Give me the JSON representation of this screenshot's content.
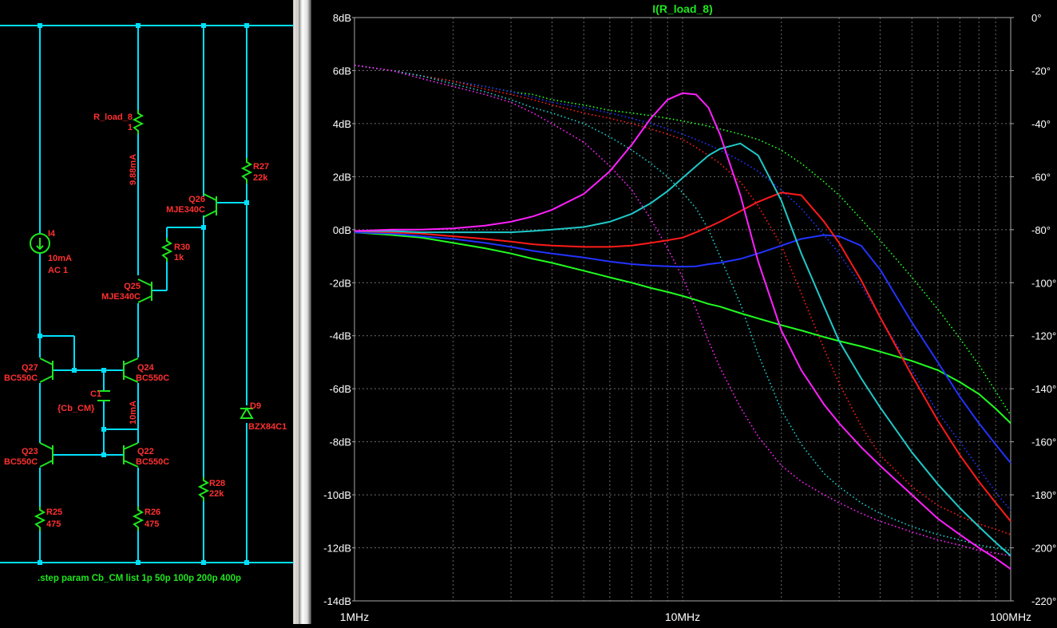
{
  "schematic": {
    "directive": ".step param Cb_CM list 1p 50p 100p 200p 400p",
    "labels": {
      "r_load_name": "R_load_8",
      "r_load_value": "1",
      "current_label": "9.88mA",
      "r27_name": "R27",
      "r27_value": "22k",
      "q26_name": "Q26",
      "q26_model": "MJE340C",
      "r30_name": "R30",
      "r30_value": "1k",
      "i4_name": "I4",
      "i4_value": "10mA",
      "i4_ac": "AC 1",
      "q25_name": "Q25",
      "q25_model": "MJE340C",
      "q27_name": "Q27",
      "q27_model": "BC550C",
      "q24_name": "Q24",
      "q24_model": "BC550C",
      "c1_name": "C1",
      "c1_value": "{Cb_CM}",
      "current2_label": "10mA",
      "d9_name": "D9",
      "d9_model": "BZX84C1",
      "q23_name": "Q23",
      "q23_model": "BC550C",
      "q22_name": "Q22",
      "q22_model": "BC550C",
      "r28_name": "R28",
      "r28_value": "22k",
      "r25_name": "R25",
      "r25_value": "475",
      "r26_name": "R26",
      "r26_value": "475"
    }
  },
  "plot": {
    "title": "I(R_load_8)",
    "colors": {
      "wire": "#00e0ff",
      "component": "#1ee61e",
      "label": "#ff3030",
      "grid": "#6a6a6a",
      "axis_text": "#ffffff"
    }
  },
  "chart_data": {
    "type": "line",
    "title": "I(R_load_8)",
    "x_scale": "log",
    "x_range_hz": [
      1000000,
      100000000
    ],
    "x_ticks": [
      "1MHz",
      "10MHz",
      "100MHz"
    ],
    "y_left_range_db": [
      -14,
      8
    ],
    "y_left_ticks": [
      "8dB",
      "6dB",
      "4dB",
      "2dB",
      "0dB",
      "-2dB",
      "-4dB",
      "-6dB",
      "-8dB",
      "-10dB",
      "-12dB",
      "-14dB"
    ],
    "y_right_range_deg": [
      -220,
      0
    ],
    "y_right_ticks": [
      "0°",
      "-20°",
      "-40°",
      "-60°",
      "-80°",
      "-100°",
      "-120°",
      "-140°",
      "-160°",
      "-180°",
      "-200°",
      "-220°"
    ],
    "grid": true,
    "x_hz": [
      1000000,
      1300000,
      1600000,
      2000000,
      2500000,
      3000000,
      3500000,
      4000000,
      5000000,
      6000000,
      7000000,
      8000000,
      9000000,
      10000000,
      11000000,
      12000000,
      13000000,
      15000000,
      17000000,
      20000000,
      23000000,
      27000000,
      30000000,
      35000000,
      40000000,
      50000000,
      60000000,
      70000000,
      80000000,
      90000000,
      100000000
    ],
    "series": [
      {
        "color": "#20ff20",
        "style": "solid",
        "axis": "left",
        "values": [
          -0.1,
          -0.2,
          -0.3,
          -0.5,
          -0.7,
          -0.9,
          -1.1,
          -1.25,
          -1.55,
          -1.8,
          -2.0,
          -2.2,
          -2.35,
          -2.5,
          -2.65,
          -2.8,
          -2.9,
          -3.15,
          -3.35,
          -3.6,
          -3.8,
          -4.05,
          -4.2,
          -4.4,
          -4.6,
          -4.95,
          -5.3,
          -5.75,
          -6.2,
          -6.75,
          -7.3
        ]
      },
      {
        "color": "#2233ff",
        "style": "solid",
        "axis": "left",
        "values": [
          -0.1,
          -0.15,
          -0.25,
          -0.35,
          -0.5,
          -0.65,
          -0.8,
          -0.9,
          -1.05,
          -1.2,
          -1.3,
          -1.35,
          -1.38,
          -1.4,
          -1.38,
          -1.3,
          -1.25,
          -1.1,
          -0.9,
          -0.6,
          -0.35,
          -0.2,
          -0.25,
          -0.6,
          -1.5,
          -3.5,
          -5.0,
          -6.3,
          -7.3,
          -8.1,
          -8.8
        ]
      },
      {
        "color": "#ff1a1a",
        "style": "solid",
        "axis": "left",
        "values": [
          -0.05,
          -0.1,
          -0.15,
          -0.25,
          -0.35,
          -0.45,
          -0.55,
          -0.6,
          -0.65,
          -0.65,
          -0.6,
          -0.5,
          -0.4,
          -0.3,
          -0.1,
          0.1,
          0.3,
          0.7,
          1.05,
          1.4,
          1.3,
          0.3,
          -0.5,
          -1.9,
          -3.3,
          -5.5,
          -7.2,
          -8.5,
          -9.5,
          -10.3,
          -11.0
        ]
      },
      {
        "color": "#20c8c8",
        "style": "solid",
        "axis": "left",
        "values": [
          -0.05,
          -0.05,
          -0.1,
          -0.1,
          -0.1,
          -0.1,
          -0.05,
          0,
          0.1,
          0.3,
          0.6,
          1.0,
          1.45,
          1.95,
          2.4,
          2.8,
          3.05,
          3.25,
          2.8,
          1.1,
          -0.9,
          -2.9,
          -4.2,
          -5.6,
          -6.7,
          -8.4,
          -9.6,
          -10.5,
          -11.2,
          -11.8,
          -12.3
        ]
      },
      {
        "color": "#ff20ff",
        "style": "solid",
        "axis": "left",
        "values": [
          -0.05,
          0,
          0,
          0.05,
          0.15,
          0.3,
          0.5,
          0.75,
          1.35,
          2.2,
          3.2,
          4.2,
          4.9,
          5.15,
          5.1,
          4.6,
          3.6,
          1.3,
          -1.2,
          -3.8,
          -5.3,
          -6.6,
          -7.3,
          -8.2,
          -8.9,
          -10.0,
          -10.9,
          -11.5,
          -12.0,
          -12.4,
          -12.8
        ]
      },
      {
        "color": "#20ff20",
        "style": "dotted",
        "axis": "right",
        "values": [
          -18,
          -20,
          -22,
          -24,
          -26,
          -28,
          -29,
          -31,
          -33,
          -35,
          -36,
          -37,
          -38,
          -39,
          -40,
          -41,
          -42,
          -44,
          -46,
          -50,
          -55,
          -62,
          -67,
          -76,
          -84,
          -98,
          -110,
          -121,
          -131,
          -141,
          -150
        ]
      },
      {
        "color": "#2233ff",
        "style": "dotted",
        "axis": "right",
        "values": [
          -18,
          -20,
          -22,
          -24,
          -26,
          -28,
          -30,
          -32,
          -34,
          -36,
          -38,
          -40,
          -42,
          -44,
          -46,
          -48,
          -50,
          -54,
          -58,
          -65,
          -72,
          -82,
          -89,
          -101,
          -113,
          -133,
          -149,
          -160,
          -170,
          -179,
          -186
        ]
      },
      {
        "color": "#ff1a1a",
        "style": "dotted",
        "axis": "right",
        "values": [
          -18,
          -20,
          -22,
          -24,
          -27,
          -29,
          -31,
          -33,
          -36,
          -38,
          -40,
          -42,
          -44,
          -46,
          -49,
          -52,
          -55,
          -62,
          -71,
          -86,
          -104,
          -125,
          -138,
          -154,
          -165,
          -177,
          -184,
          -188,
          -191,
          -193,
          -195
        ]
      },
      {
        "color": "#20c8c8",
        "style": "dotted",
        "axis": "right",
        "values": [
          -18,
          -20,
          -22,
          -25,
          -28,
          -31,
          -34,
          -36,
          -40,
          -45,
          -50,
          -55,
          -60,
          -66,
          -72,
          -80,
          -90,
          -108,
          -127,
          -148,
          -161,
          -172,
          -177,
          -183,
          -187,
          -192,
          -195,
          -197,
          -199,
          -200,
          -201
        ]
      },
      {
        "color": "#ff20ff",
        "style": "dotted",
        "axis": "right",
        "values": [
          -18,
          -20,
          -23,
          -26,
          -29,
          -32,
          -36,
          -40,
          -47,
          -56,
          -65,
          -76,
          -87,
          -98,
          -110,
          -122,
          -132,
          -147,
          -158,
          -169,
          -175,
          -180,
          -183,
          -187,
          -190,
          -194,
          -197,
          -199,
          -201,
          -202,
          -203
        ]
      }
    ]
  }
}
